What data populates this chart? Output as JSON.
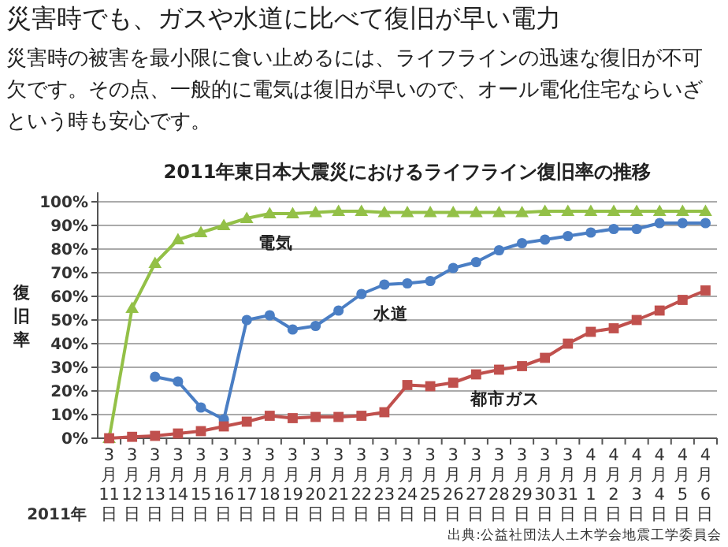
{
  "chart_data": {
    "type": "line",
    "title": "2011年東日本大震災におけるライフライン復旧率の推移",
    "ylabel": "復旧率",
    "annotations": [
      "災害時でも、ガスや水道に比べて復旧が早い電力",
      "災害時の被害を最小限に食い止めるには、ライフラインの迅速な復旧が不可欠です。その点、一般的に電気は復旧が早いので、オール電化住宅ならいざという時も安心です。",
      "2011年",
      "出典:公益社団法人土木学会地震工学委員会"
    ],
    "categories": [
      "3月11日",
      "3月12日",
      "3月13日",
      "3月14日",
      "3月15日",
      "3月16日",
      "3月17日",
      "3月18日",
      "3月19日",
      "3月20日",
      "3月21日",
      "3月22日",
      "3月23日",
      "3月24日",
      "3月25日",
      "3月26日",
      "3月27日",
      "3月28日",
      "3月29日",
      "3月30日",
      "3月31日",
      "4月1日",
      "4月2日",
      "4月3日",
      "4月4日",
      "4月5日",
      "4月6日"
    ],
    "series": [
      {
        "name": "電気",
        "color": "#93c047",
        "marker": "triangle",
        "values": [
          0,
          55,
          74,
          84,
          87,
          90,
          93,
          95,
          95,
          95.5,
          96,
          96,
          95.5,
          95.5,
          95.5,
          95.5,
          95.5,
          95.5,
          95.5,
          96,
          96,
          96,
          96,
          96,
          96,
          96,
          96
        ]
      },
      {
        "name": "水道",
        "color": "#4a7ec4",
        "marker": "circle",
        "values": [
          null,
          null,
          26,
          24,
          13,
          8,
          50,
          52,
          46,
          47.5,
          54,
          61,
          65,
          65.5,
          66.5,
          72,
          74.5,
          79.5,
          82.5,
          84,
          85.5,
          87,
          88.5,
          88.5,
          91,
          91,
          91
        ]
      },
      {
        "name": "都市ガス",
        "color": "#c0504d",
        "marker": "square",
        "values": [
          0,
          0.6,
          1,
          2,
          3,
          5,
          7,
          9.5,
          8.5,
          9,
          9,
          9.5,
          11,
          22.5,
          22,
          23.5,
          27,
          29,
          30.5,
          34,
          40,
          45,
          46.5,
          50,
          54,
          58.5,
          62.5
        ]
      }
    ],
    "ylim": [
      0,
      100
    ],
    "yticks": [
      {
        "value": 0,
        "label": "0%"
      },
      {
        "value": 10,
        "label": "10%"
      },
      {
        "value": 20,
        "label": "20%"
      },
      {
        "value": 30,
        "label": "30%"
      },
      {
        "value": 40,
        "label": "40%"
      },
      {
        "value": 50,
        "label": "50%"
      },
      {
        "value": 60,
        "label": "60%"
      },
      {
        "value": 70,
        "label": "70%"
      },
      {
        "value": 80,
        "label": "80%"
      },
      {
        "value": 90,
        "label": "90%"
      },
      {
        "value": 100,
        "label": "100%"
      }
    ],
    "grid": "y",
    "line_style": "solid"
  }
}
